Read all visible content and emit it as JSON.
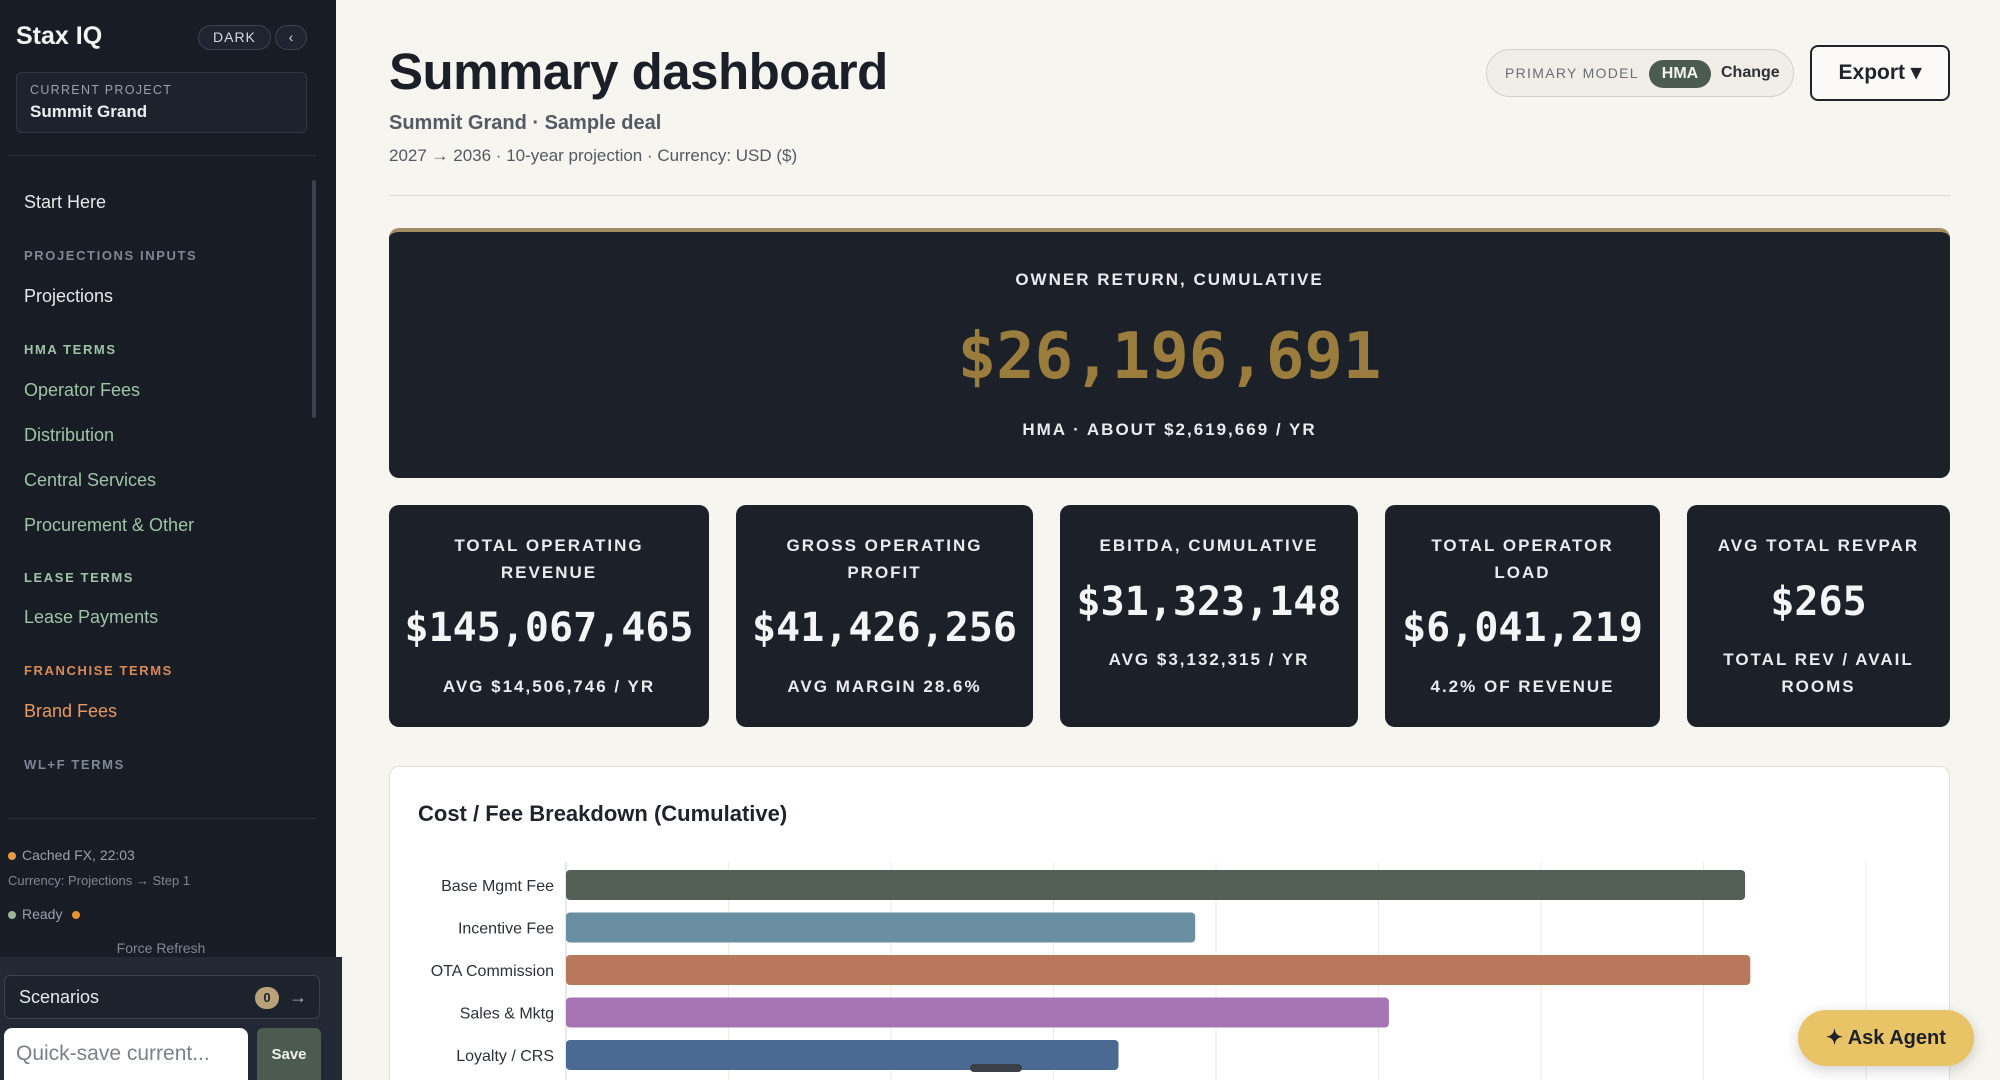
{
  "sidebar": {
    "brand": "Stax IQ",
    "mode_label": "DARK",
    "collapse_glyph": "‹",
    "project_caption": "CURRENT PROJECT",
    "project_name": "Summit Grand",
    "start_here": "Start Here",
    "sections": {
      "projections_inputs": "PROJECTIONS INPUTS",
      "hma_terms": "HMA TERMS",
      "lease_terms": "LEASE TERMS",
      "franchise_terms": "FRANCHISE TERMS",
      "wlf_terms": "WL+F TERMS"
    },
    "items": {
      "projections": "Projections",
      "operator_fees": "Operator Fees",
      "distribution": "Distribution",
      "central_services": "Central Services",
      "procurement": "Procurement & Other",
      "lease_payments": "Lease Payments",
      "brand_fees": "Brand Fees"
    },
    "status": {
      "cached_fx": "Cached FX, 22:03",
      "currency_note": "Currency: Projections → Step 1",
      "ready": "Ready",
      "force_refresh": "Force Refresh"
    },
    "scenarios": {
      "label": "Scenarios",
      "count": "0",
      "arrow": "→"
    },
    "quick_save": {
      "placeholder": "Quick-save current...",
      "button": "Save"
    },
    "colors": {
      "accent_green": "#9fc3a7",
      "accent_orange": "#e8985c"
    }
  },
  "header": {
    "title": "Summary dashboard",
    "subtitle": "Summit Grand · Sample deal",
    "meta": "2027 → 2036 · 10-year projection · Currency: USD ($)",
    "primary_model_label": "PRIMARY MODEL",
    "primary_model_value": "HMA",
    "change_label": "Change",
    "export_label": "Export ▾"
  },
  "hero": {
    "caption": "OWNER RETURN, CUMULATIVE",
    "value": "$26,196,691",
    "footer": "HMA · ABOUT $2,619,669 / YR"
  },
  "kpis": [
    {
      "label_lines": [
        "TOTAL OPERATING",
        "REVENUE"
      ],
      "value": "$145,067,465",
      "footer_lines": [
        "AVG $14,506,746 / YR"
      ]
    },
    {
      "label_lines": [
        "GROSS OPERATING",
        "PROFIT"
      ],
      "value": "$41,426,256",
      "footer_lines": [
        "AVG MARGIN 28.6%"
      ]
    },
    {
      "label_lines": [
        "EBITDA, CUMULATIVE"
      ],
      "value": "$31,323,148",
      "footer_lines": [
        "AVG $3,132,315 / YR"
      ]
    },
    {
      "label_lines": [
        "TOTAL OPERATOR",
        "LOAD"
      ],
      "value": "$6,041,219",
      "footer_lines": [
        "4.2% OF REVENUE"
      ]
    },
    {
      "label_lines": [
        "AVG TOTAL REVPAR"
      ],
      "value": "$265",
      "footer_lines": [
        "TOTAL REV / AVAIL",
        "ROOMS"
      ]
    }
  ],
  "chart_data": {
    "type": "bar",
    "orientation": "horizontal",
    "title": "Cost / Fee Breakdown (Cumulative)",
    "categories": [
      "Base Mgmt Fee",
      "Incentive Fee",
      "OTA Commission",
      "Sales & Mktg",
      "Loyalty / CRS"
    ],
    "values": [
      0.907,
      0.484,
      0.911,
      0.633,
      0.425
    ],
    "colors": [
      "#545f56",
      "#6a8fa2",
      "#b9785c",
      "#a574b2",
      "#4a6a94"
    ],
    "grid": true
  },
  "ask_agent": {
    "label": "✦ Ask Agent"
  }
}
